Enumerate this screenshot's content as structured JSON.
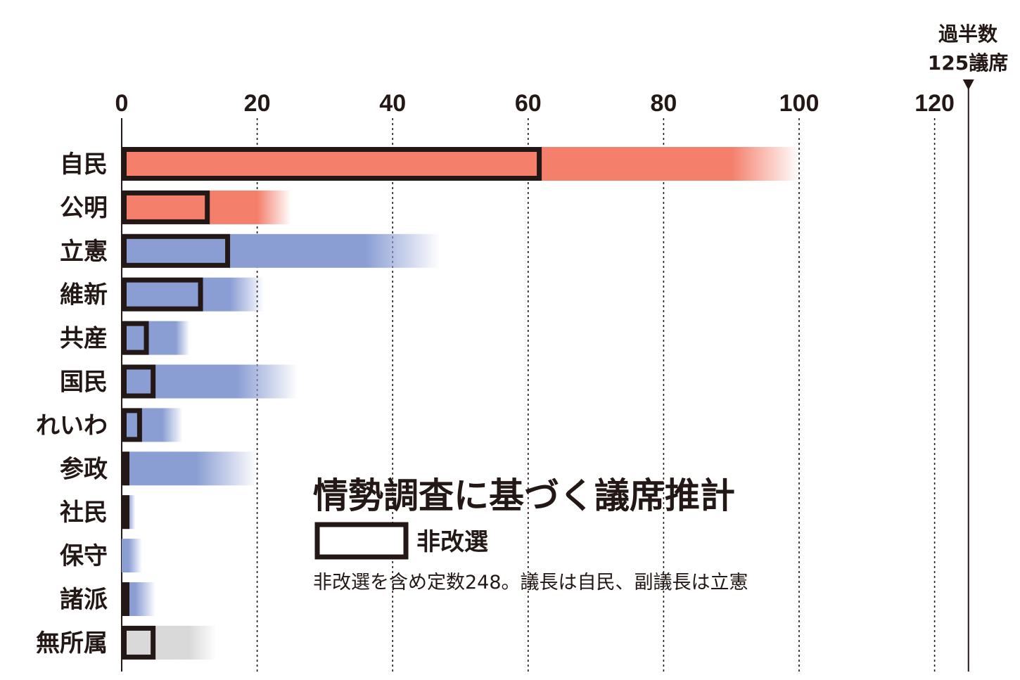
{
  "chart_data": {
    "type": "bar",
    "title": "情勢調査に基づく議席推計",
    "legend": {
      "label": "非改選",
      "placement": "center-right"
    },
    "note": "非改選を含め定数248。議長は自民、副議長は立憲",
    "majority": {
      "value": 125,
      "line1": "過半数",
      "line2": "125議席"
    },
    "xlim": [
      0,
      125
    ],
    "xticks": [
      0,
      20,
      40,
      60,
      80,
      100,
      120
    ],
    "grid": true,
    "colors": {
      "ruling": "#f47f6b",
      "opposition": "#8b9ed4",
      "independent": "#d9d9d9",
      "outline": "#231815"
    },
    "categories": [
      "自民",
      "公明",
      "立憲",
      "維新",
      "共産",
      "国民",
      "れいわ",
      "参政",
      "社民",
      "保守",
      "諸派",
      "無所属"
    ],
    "series": [
      {
        "name": "非改選",
        "values": [
          62,
          13,
          16,
          12,
          4,
          5,
          3,
          1,
          1,
          0,
          1,
          5
        ]
      }
    ],
    "estimate_range": [
      {
        "low": 90,
        "high": 100,
        "group": "ruling"
      },
      {
        "low": 20,
        "high": 25,
        "group": "ruling"
      },
      {
        "low": 36,
        "high": 47,
        "group": "opposition"
      },
      {
        "low": 16,
        "high": 21,
        "group": "opposition"
      },
      {
        "low": 8,
        "high": 10,
        "group": "opposition"
      },
      {
        "low": 17,
        "high": 26,
        "group": "opposition"
      },
      {
        "low": 6,
        "high": 9,
        "group": "opposition"
      },
      {
        "low": 11,
        "high": 20,
        "group": "opposition"
      },
      {
        "low": 1,
        "high": 2,
        "group": "opposition"
      },
      {
        "low": 1,
        "high": 3,
        "group": "opposition"
      },
      {
        "low": 2,
        "high": 5,
        "group": "opposition"
      },
      {
        "low": 10,
        "high": 14,
        "group": "independent"
      }
    ]
  }
}
